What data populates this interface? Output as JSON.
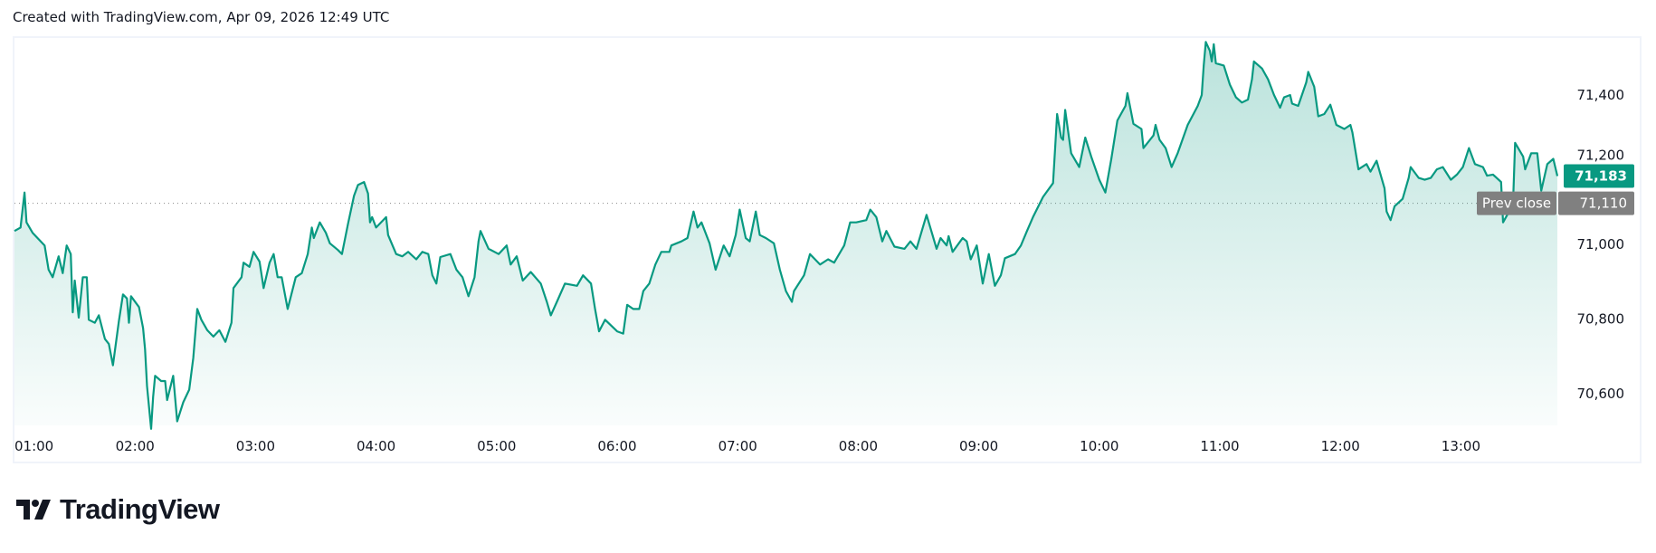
{
  "header": {
    "caption": "Created with TradingView.com, Apr 09, 2026 12:49 UTC"
  },
  "branding": {
    "logo_text": "TradingView"
  },
  "colors": {
    "line": "#089981",
    "last_price_tag": "#089981",
    "prev_close_tag": "#808080"
  },
  "chart_data": {
    "type": "area",
    "title": "",
    "xlabel": "",
    "ylabel": "",
    "x_unit": "minutes since 01:00 UTC",
    "x_ticks": [
      "01:00",
      "02:00",
      "03:00",
      "04:00",
      "05:00",
      "06:00",
      "07:00",
      "08:00",
      "09:00",
      "10:00",
      "11:00",
      "12:00",
      "13:00"
    ],
    "y_ticks": [
      "71,400",
      "71,200",
      "71,000",
      "70,800",
      "70,600"
    ],
    "y_tick_values": [
      71400,
      71200,
      71000,
      70800,
      70600
    ],
    "ylim": [
      70480,
      71580
    ],
    "grid": false,
    "last_price": {
      "value": 71183,
      "label": "71,183"
    },
    "prev_close": {
      "value": 71110,
      "label": "71,110",
      "name": "Prev close"
    },
    "x": [
      0,
      3,
      5,
      6,
      9,
      15,
      17,
      19,
      22,
      24,
      26,
      28,
      29,
      30,
      32,
      34,
      36,
      37,
      40,
      42,
      45,
      47,
      49,
      52,
      54,
      56,
      57,
      58,
      62,
      64,
      65,
      66,
      68,
      69,
      70,
      73,
      75,
      76,
      79,
      81,
      84,
      87,
      89,
      91,
      93,
      96,
      99,
      102,
      105,
      108,
      109,
      113,
      114,
      117,
      119,
      122,
      124,
      127,
      129,
      131,
      133,
      136,
      140,
      143,
      146,
      148,
      149,
      152,
      155,
      157,
      161,
      163,
      166,
      169,
      171,
      174,
      176,
      177,
      178,
      180,
      185,
      186,
      190,
      193,
      196,
      200,
      203,
      206,
      208,
      210,
      212,
      217,
      220,
      223,
      226,
      229,
      231,
      232,
      236,
      241,
      245,
      247,
      250,
      253,
      257,
      262,
      265,
      267,
      270,
      274,
      280,
      283,
      287,
      289,
      291,
      294,
      300,
      303,
      305,
      308,
      311,
      313,
      316,
      319,
      322,
      326,
      327,
      332,
      335,
      338,
      340,
      342,
      346,
      349,
      353,
      356,
      359,
      361,
      364,
      366,
      369,
      371,
      374,
      378,
      381,
      384,
      387,
      388,
      393,
      396,
      401,
      405,
      408,
      413,
      416,
      419,
      424,
      426,
      429,
      432,
      434,
      438,
      443,
      446,
      449,
      454,
      457,
      459,
      461,
      464,
      465,
      467,
      472,
      474,
      476,
      479,
      482,
      485,
      488,
      491,
      493,
      498,
      501,
      504,
      507,
      512,
      517,
      518,
      519,
      521,
      522,
      523,
      526,
      530,
      533,
      536,
      540,
      543,
      546,
      549,
      553,
      554,
      557,
      561,
      562,
      567,
      568,
      570,
      573,
      576,
      579,
      584,
      589,
      591,
      592,
      593,
      595,
      596,
      597,
      598,
      602,
      605,
      608,
      611,
      614,
      616,
      617,
      621,
      624,
      627,
      630,
      632,
      635,
      636,
      639,
      643,
      644,
      647,
      649,
      652,
      655,
      658,
      662,
      665,
      666,
      669,
      673,
      675,
      678,
      682,
      683,
      685,
      687,
      691,
      694,
      695,
      699,
      702,
      705,
      708,
      711,
      715,
      718,
      721,
      724,
      727,
      731,
      733,
      736,
      740,
      741,
      744,
      746,
      747,
      751,
      752,
      755,
      758,
      760,
      763,
      766,
      768
    ],
    "values": [
      71036,
      71045,
      71139,
      71059,
      71031,
      70997,
      70932,
      70912,
      70968,
      70923,
      70997,
      70974,
      70818,
      70903,
      70804,
      70912,
      70912,
      70798,
      70790,
      70810,
      70747,
      70733,
      70676,
      70795,
      70866,
      70855,
      70790,
      70861,
      70832,
      70776,
      70719,
      70620,
      70506,
      70591,
      70648,
      70634,
      70634,
      70583,
      70648,
      70526,
      70577,
      70611,
      70696,
      70827,
      70798,
      70770,
      70753,
      70770,
      70739,
      70790,
      70883,
      70912,
      70951,
      70940,
      70980,
      70954,
      70883,
      70951,
      70974,
      70912,
      70912,
      70827,
      70912,
      70923,
      70974,
      71045,
      71017,
      71059,
      71031,
      71003,
      70985,
      70974,
      71054,
      71130,
      71159,
      71167,
      71136,
      71059,
      71073,
      71045,
      71073,
      71025,
      70974,
      70968,
      70980,
      70960,
      70980,
      70974,
      70917,
      70895,
      70966,
      70974,
      70932,
      70912,
      70861,
      70912,
      71008,
      71036,
      70988,
      70974,
      70997,
      70946,
      70968,
      70903,
      70926,
      70895,
      70846,
      70810,
      70846,
      70895,
      70889,
      70917,
      70895,
      70827,
      70767,
      70798,
      70767,
      70761,
      70838,
      70827,
      70827,
      70875,
      70895,
      70946,
      70980,
      70980,
      70997,
      71008,
      71017,
      71088,
      71045,
      71059,
      71003,
      70932,
      70997,
      70968,
      71025,
      71093,
      71017,
      71008,
      71088,
      71025,
      71017,
      71003,
      70932,
      70875,
      70846,
      70875,
      70917,
      70974,
      70946,
      70960,
      70951,
      70997,
      71059,
      71059,
      71065,
      71093,
      71073,
      71008,
      71036,
      70994,
      70988,
      71008,
      70988,
      71079,
      71025,
      70988,
      71017,
      70997,
      71022,
      70980,
      71017,
      71008,
      70960,
      70997,
      70895,
      70974,
      70889,
      70917,
      70963,
      70974,
      70997,
      71036,
      71073,
      71127,
      71164,
      71258,
      71349,
      71286,
      71280,
      71360,
      71244,
      71207,
      71286,
      71235,
      71173,
      71139,
      71229,
      71332,
      71371,
      71405,
      71323,
      71309,
      71258,
      71292,
      71320,
      71280,
      71258,
      71207,
      71244,
      71320,
      71371,
      71400,
      71479,
      71542,
      71519,
      71490,
      71536,
      71485,
      71479,
      71428,
      71394,
      71380,
      71388,
      71442,
      71490,
      71471,
      71442,
      71400,
      71366,
      71394,
      71400,
      71377,
      71371,
      71434,
      71462,
      71422,
      71343,
      71349,
      71374,
      71320,
      71309,
      71320,
      71300,
      71201,
      71215,
      71195,
      71224,
      71150,
      71088,
      71065,
      71102,
      71122,
      71178,
      71207,
      71178,
      71173,
      71178,
      71201,
      71207,
      71173,
      71187,
      71207,
      71258,
      71215,
      71207,
      71184,
      71187,
      71167,
      71059,
      71088,
      71116,
      71272,
      71235,
      71201,
      71244,
      71244,
      71144,
      71215,
      71229,
      71183
    ]
  }
}
